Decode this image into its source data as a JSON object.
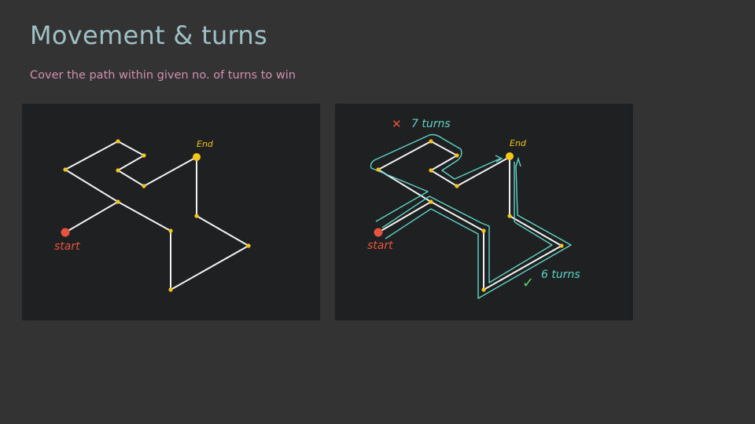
{
  "slide": {
    "title": "Movement & turns",
    "subtitle": "Cover the path within given no. of turns to win"
  },
  "diagram_left": {
    "start_label": "start",
    "end_label": "End"
  },
  "diagram_right": {
    "start_label": "start",
    "end_label": "End",
    "bad_route_label": "7 turns",
    "bad_route_mark": "✕",
    "good_route_label": "6 turns",
    "good_route_mark": "✓"
  },
  "colors": {
    "background": "#333333",
    "panel": "#1e2021",
    "path": "#f2f2f2",
    "node": "#f5c518",
    "start": "#e8533f",
    "title": "#9fc0c7",
    "subtitle": "#d28fb0",
    "route_trace": "#5fd3c6",
    "cross": "#e8533f",
    "check": "#5fd36a"
  }
}
